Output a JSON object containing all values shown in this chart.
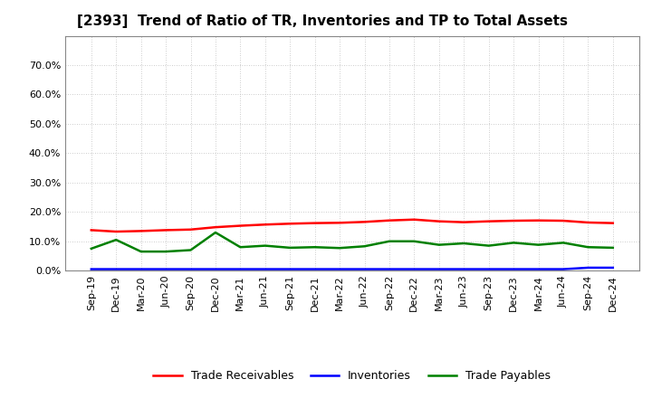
{
  "title": "[2393]  Trend of Ratio of TR, Inventories and TP to Total Assets",
  "x_labels": [
    "Sep-19",
    "Dec-19",
    "Mar-20",
    "Jun-20",
    "Sep-20",
    "Dec-20",
    "Mar-21",
    "Jun-21",
    "Sep-21",
    "Dec-21",
    "Mar-22",
    "Jun-22",
    "Sep-22",
    "Dec-22",
    "Mar-23",
    "Jun-23",
    "Sep-23",
    "Dec-23",
    "Mar-24",
    "Jun-24",
    "Sep-24",
    "Dec-24"
  ],
  "trade_receivables": [
    0.138,
    0.133,
    0.135,
    0.138,
    0.14,
    0.148,
    0.153,
    0.157,
    0.16,
    0.162,
    0.163,
    0.166,
    0.171,
    0.174,
    0.168,
    0.165,
    0.168,
    0.17,
    0.171,
    0.17,
    0.164,
    0.162
  ],
  "inventories": [
    0.005,
    0.005,
    0.005,
    0.005,
    0.005,
    0.005,
    0.005,
    0.005,
    0.005,
    0.005,
    0.005,
    0.005,
    0.005,
    0.005,
    0.005,
    0.005,
    0.005,
    0.005,
    0.005,
    0.005,
    0.01,
    0.01
  ],
  "trade_payables": [
    0.075,
    0.105,
    0.065,
    0.065,
    0.07,
    0.13,
    0.08,
    0.085,
    0.078,
    0.08,
    0.077,
    0.083,
    0.1,
    0.1,
    0.088,
    0.093,
    0.085,
    0.095,
    0.088,
    0.095,
    0.08,
    0.078
  ],
  "tr_color": "#ff0000",
  "inv_color": "#0000ff",
  "tp_color": "#008000",
  "ylim": [
    0,
    0.8
  ],
  "yticks": [
    0.0,
    0.1,
    0.2,
    0.3,
    0.4,
    0.5,
    0.6,
    0.7
  ],
  "bg_color": "#ffffff",
  "plot_bg_color": "#ffffff",
  "grid_color": "#bbbbbb",
  "linewidth": 1.8,
  "title_fontsize": 11,
  "tick_fontsize": 8,
  "legend_labels": [
    "Trade Receivables",
    "Inventories",
    "Trade Payables"
  ]
}
